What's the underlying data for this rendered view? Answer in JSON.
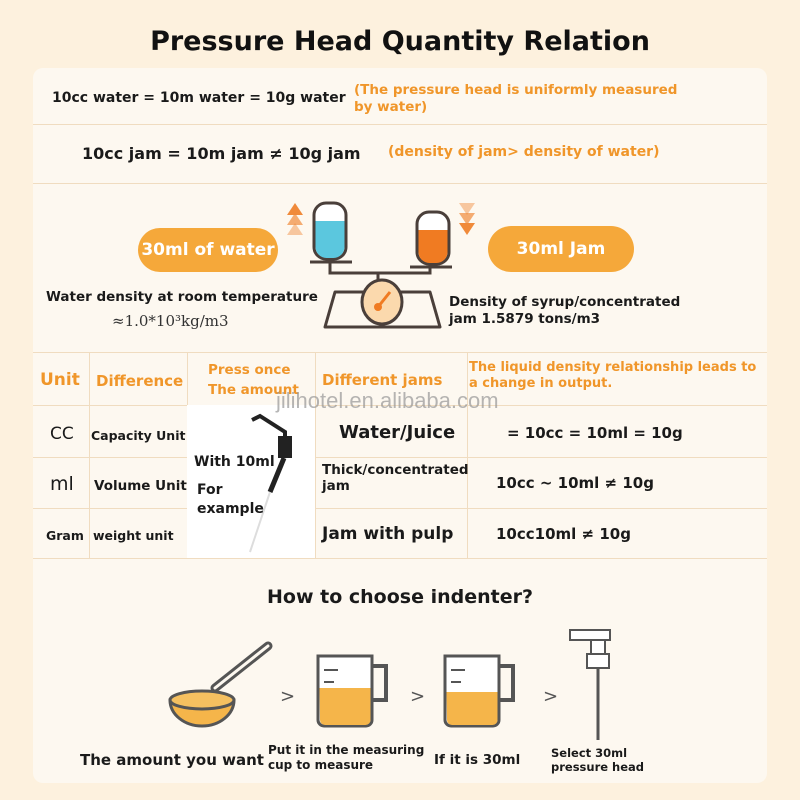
{
  "title": "Pressure Head Quantity Relation",
  "rows": [
    {
      "left": "10cc water = 10m water = 10g water",
      "right": "(The pressure head is uniformly measured by water)"
    },
    {
      "left": "10cc jam = 10m jam ≠ 10g jam",
      "right": "(density of jam> density of water)"
    }
  ],
  "scale": {
    "water_bubble": "30ml of water",
    "jam_bubble": "30ml Jam",
    "water_density_label": "Water density at room temperature",
    "water_density_value": "≈1.0*10³kg/m3",
    "jam_density": "Density of syrup/concentrated jam 1.5879 tons/m3",
    "colors": {
      "water": "#5bc7de",
      "jam": "#f07b22",
      "bubble": "#f5a83a"
    }
  },
  "table": {
    "headers": [
      "Unit",
      "Difference",
      "Press once The amount",
      "Different jams",
      "The liquid density relationship leads to a change in output."
    ],
    "units": [
      {
        "unit": "CC",
        "difference": "Capacity Unit",
        "jam": "Water/Juice",
        "relation": "= 10cc = 10ml = 10g"
      },
      {
        "unit": "ml",
        "difference": "Volume Unit",
        "jam": "Thick/concentrated jam",
        "relation": "10cc ~ 10ml ≠ 10g"
      },
      {
        "unit": "Gram",
        "difference": "weight unit",
        "jam": "Jam with pulp",
        "relation": "10cc10ml ≠ 10g"
      }
    ],
    "press_note_1": "With 10ml",
    "press_note_2": "For example"
  },
  "watermark": "jilihotel.en.alibaba.com",
  "howto": {
    "title": "How to choose indenter?",
    "steps": [
      "The amount you want",
      "Put it in the measuring cup to measure",
      "If it is 30ml",
      "Select 30ml pressure head"
    ],
    "separator": ">"
  }
}
